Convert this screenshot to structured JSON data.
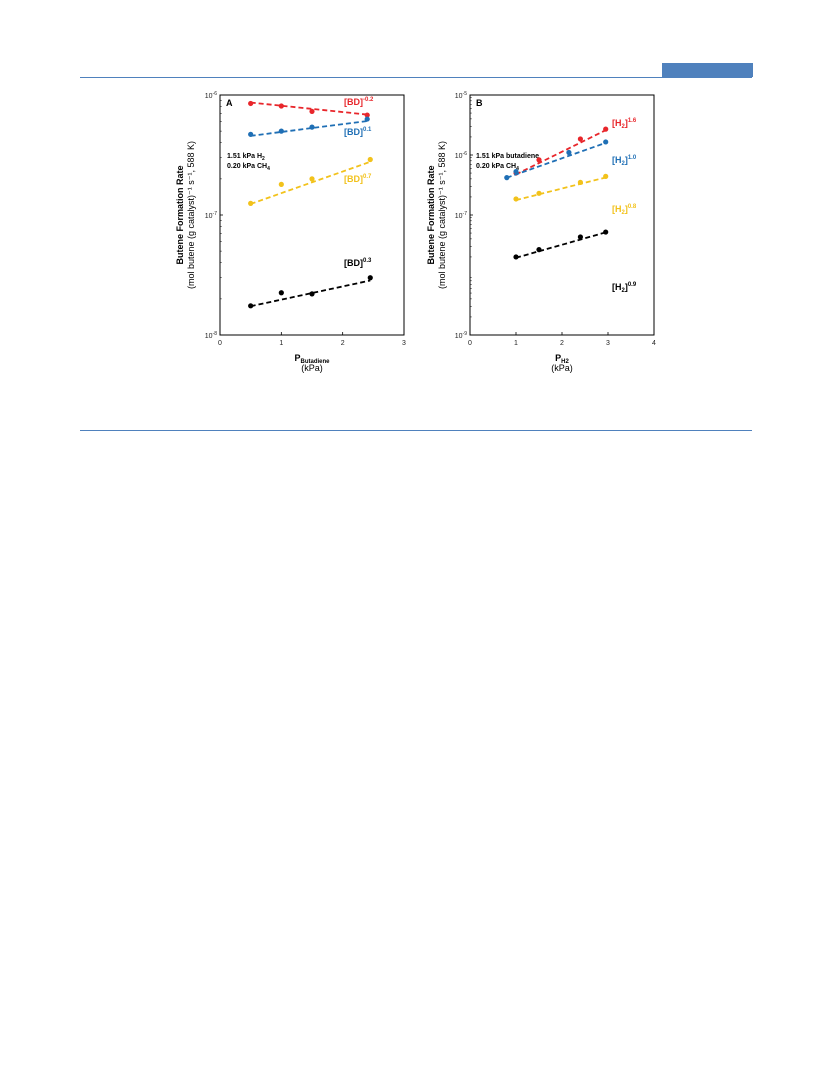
{
  "header": {
    "rule_color": "#4f81bd"
  },
  "chart_data": [
    {
      "type": "scatter",
      "panel_label": "A",
      "xlabel": "P",
      "xlabel_sub": "Butadiene",
      "xlabel_unit": "(kPa)",
      "ylabel_line1": "Butene Formation Rate",
      "ylabel_line2": "(mol butene (g catalyst)⁻¹ s⁻¹, 588 K)",
      "xlim": [
        0,
        3
      ],
      "ylim": [
        1e-08,
        1e-06
      ],
      "yscale": "log",
      "xticks": [
        "0",
        "1",
        "2",
        "3"
      ],
      "yticks": [
        {
          "base": "10",
          "exp": "-8"
        },
        {
          "base": "10",
          "exp": "-7"
        },
        {
          "base": "10",
          "exp": "-6"
        }
      ],
      "conditions": [
        {
          "text": "1.51 kPa H",
          "sub": "2"
        },
        {
          "text": "0.20 kPa CH",
          "sub": "4"
        }
      ],
      "series": [
        {
          "name": "[BD]",
          "exp": "-0.2",
          "color": "#e8262b",
          "x": [
            0.5,
            1.0,
            1.5,
            2.4
          ],
          "y": [
            8.5e-07,
            8.1e-07,
            7.3e-07,
            6.8e-07
          ]
        },
        {
          "name": "[BD]",
          "exp": "0.1",
          "color": "#1f6fb5",
          "x": [
            0.5,
            1.0,
            1.5,
            2.4
          ],
          "y": [
            4.7e-07,
            5e-07,
            5.4e-07,
            6.3e-07
          ]
        },
        {
          "name": "[BD]",
          "exp": "0.7",
          "color": "#f2c21b",
          "x": [
            0.5,
            1.0,
            1.5,
            2.45
          ],
          "y": [
            1.25e-07,
            1.8e-07,
            2e-07,
            2.9e-07
          ]
        },
        {
          "name": "[BD]",
          "exp": "0.3",
          "color": "#000000",
          "x": [
            0.5,
            1.0,
            1.5,
            2.45
          ],
          "y": [
            1.75e-08,
            2.25e-08,
            2.2e-08,
            3e-08
          ]
        }
      ]
    },
    {
      "type": "scatter",
      "panel_label": "B",
      "xlabel": "P",
      "xlabel_sub": "H2",
      "xlabel_unit": "(kPa)",
      "ylabel_line1": "Butene Formation Rate",
      "ylabel_line2": "(mol butene (g catalyst)⁻¹ s⁻¹, 588 K)",
      "xlim": [
        0,
        4
      ],
      "ylim": [
        1e-09,
        1e-05
      ],
      "yscale": "log",
      "xticks": [
        "0",
        "1",
        "2",
        "3",
        "4"
      ],
      "yticks": [
        {
          "base": "10",
          "exp": "-9"
        },
        {
          "base": "10",
          "exp": "-7"
        },
        {
          "base": "10",
          "exp": "-6"
        },
        {
          "base": "10",
          "exp": "-5"
        }
      ],
      "conditions": [
        {
          "text": "1.51 kPa butadiene",
          "sub": ""
        },
        {
          "text": "0.20 kPa CH",
          "sub": "4"
        }
      ],
      "series": [
        {
          "name": "[H",
          "name_sub": "2",
          "name_end": "]",
          "exp": "1.6",
          "color": "#e8262b",
          "x": [
            1.0,
            1.5,
            2.4,
            2.95
          ],
          "y": [
            5e-07,
            8.3e-07,
            1.85e-06,
            2.7e-06
          ]
        },
        {
          "name": "[H",
          "name_sub": "2",
          "name_end": "]",
          "exp": "1.0",
          "color": "#1f6fb5",
          "x": [
            0.8,
            1.0,
            2.15,
            2.95
          ],
          "y": [
            4.2e-07,
            5.3e-07,
            1.1e-06,
            1.65e-06
          ]
        },
        {
          "name": "[H",
          "name_sub": "2",
          "name_end": "]",
          "exp": "0.8",
          "color": "#f2c21b",
          "x": [
            1.0,
            1.5,
            2.4,
            2.95
          ],
          "y": [
            1.85e-07,
            2.3e-07,
            3.5e-07,
            4.4e-07
          ]
        },
        {
          "name": "[H",
          "name_sub": "2",
          "name_end": "]",
          "exp": "0.9",
          "color": "#000000",
          "x": [
            1.0,
            1.5,
            2.4,
            2.95
          ],
          "y": [
            2e-08,
            2.65e-08,
            4.3e-08,
            5.2e-08
          ]
        }
      ]
    }
  ]
}
